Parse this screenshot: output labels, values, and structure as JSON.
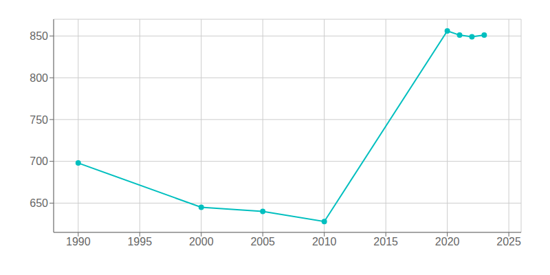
{
  "chart_data": {
    "type": "line",
    "x": [
      1990,
      2000,
      2005,
      2010,
      2020,
      2021,
      2022,
      2023
    ],
    "values": [
      698,
      645,
      640,
      628,
      856,
      851,
      849,
      851
    ],
    "color": "#00BFBF",
    "marker": "circle",
    "xlim": [
      1988,
      2026
    ],
    "ylim": [
      615,
      870
    ],
    "xticks": [
      1990,
      1995,
      2000,
      2005,
      2010,
      2015,
      2020,
      2025
    ],
    "yticks": [
      650,
      700,
      750,
      800,
      850
    ],
    "grid": true
  }
}
